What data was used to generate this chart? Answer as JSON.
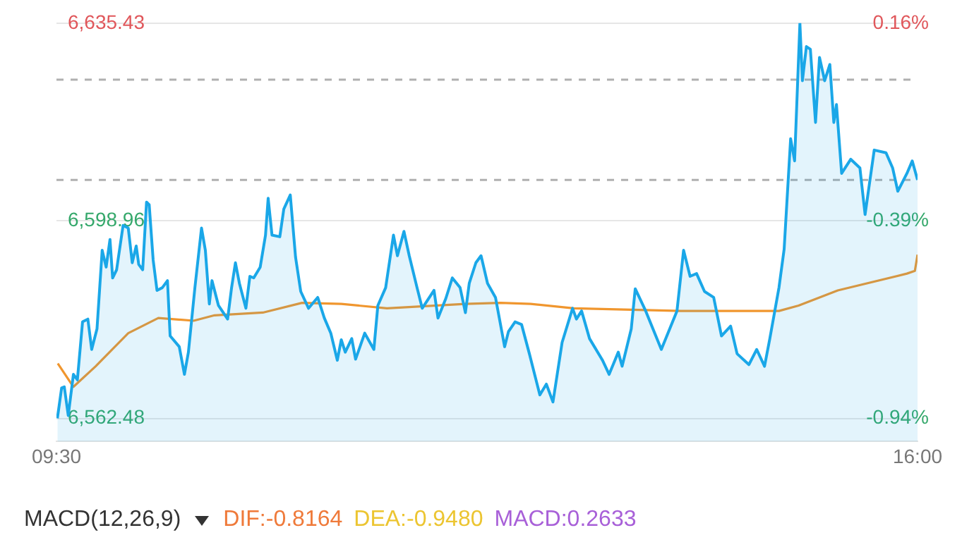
{
  "chart_data": {
    "type": "area",
    "x": [
      9.507,
      9.539,
      9.559,
      9.589,
      9.628,
      9.658,
      9.697,
      9.737,
      9.766,
      9.806,
      9.845,
      9.875,
      9.904,
      9.924,
      9.954,
      10.003,
      10.042,
      10.072,
      10.102,
      10.121,
      10.151,
      10.18,
      10.2,
      10.23,
      10.259,
      10.299,
      10.338,
      10.358,
      10.427,
      10.466,
      10.496,
      10.545,
      10.595,
      10.624,
      10.654,
      10.674,
      10.723,
      10.792,
      10.822,
      10.851,
      10.881,
      10.93,
      10.96,
      10.989,
      11.038,
      11.078,
      11.098,
      11.127,
      11.186,
      11.216,
      11.265,
      11.305,
      11.344,
      11.403,
      11.472,
      11.522,
      11.571,
      11.62,
      11.65,
      11.68,
      11.729,
      11.758,
      11.827,
      11.896,
      11.926,
      11.985,
      12.044,
      12.074,
      12.123,
      12.163,
      12.222,
      12.261,
      12.35,
      12.38,
      12.439,
      12.488,
      12.547,
      12.587,
      12.616,
      12.666,
      12.705,
      12.754,
      12.814,
      12.883,
      12.912,
      12.962,
      13.011,
      13.07,
      13.149,
      13.198,
      13.248,
      13.317,
      13.396,
      13.425,
      13.464,
      13.524,
      13.622,
      13.672,
      13.741,
      13.77,
      13.839,
      13.869,
      13.948,
      14.066,
      14.184,
      14.234,
      14.283,
      14.332,
      14.392,
      14.461,
      14.52,
      14.589,
      14.638,
      14.727,
      14.786,
      14.845,
      14.885,
      14.954,
      14.993,
      15.042,
      15.072,
      15.112,
      15.131,
      15.161,
      15.191,
      15.23,
      15.26,
      15.299,
      15.338,
      15.368,
      15.388,
      15.427,
      15.496,
      15.565,
      15.604,
      15.673,
      15.762,
      15.812,
      15.851,
      15.92,
      15.96,
      16.0
    ],
    "series": [
      {
        "color": "#1aa7e8",
        "values": [
          6562.5,
          6568.1,
          6568.3,
          6563.0,
          6570.6,
          6569.6,
          6580.3,
          6580.8,
          6575.2,
          6579.0,
          6593.5,
          6590.4,
          6595.5,
          6588.4,
          6589.9,
          6598.1,
          6597.6,
          6591.2,
          6594.3,
          6590.9,
          6589.9,
          6602.4,
          6601.9,
          6591.7,
          6586.1,
          6586.6,
          6587.9,
          6577.7,
          6575.7,
          6570.6,
          6574.7,
          6586.6,
          6597.6,
          6593.5,
          6583.6,
          6587.9,
          6583.3,
          6580.8,
          6586.6,
          6591.2,
          6587.4,
          6582.8,
          6588.7,
          6588.4,
          6590.4,
          6596.3,
          6603.1,
          6596.3,
          6596.0,
          6601.1,
          6603.7,
          6592.2,
          6585.9,
          6582.8,
          6584.8,
          6581.0,
          6578.2,
          6573.2,
          6577.0,
          6574.7,
          6577.2,
          6573.4,
          6578.2,
          6575.2,
          6583.3,
          6586.6,
          6596.3,
          6592.5,
          6597.0,
          6592.5,
          6586.6,
          6582.8,
          6586.1,
          6581.0,
          6584.6,
          6588.4,
          6586.6,
          6582.0,
          6587.4,
          6591.2,
          6592.5,
          6587.4,
          6584.8,
          6575.7,
          6578.5,
          6580.3,
          6579.8,
          6574.4,
          6566.8,
          6568.8,
          6565.5,
          6576.5,
          6582.8,
          6580.8,
          6582.3,
          6577.2,
          6573.2,
          6570.6,
          6574.7,
          6572.1,
          6579.0,
          6586.4,
          6582.3,
          6575.2,
          6582.3,
          6593.5,
          6588.7,
          6589.2,
          6585.9,
          6584.8,
          6577.7,
          6579.5,
          6574.4,
          6572.4,
          6575.2,
          6572.1,
          6577.2,
          6586.6,
          6593.7,
          6614.1,
          6610.0,
          6635.4,
          6624.8,
          6631.1,
          6630.6,
          6617.1,
          6629.1,
          6624.8,
          6627.8,
          6617.1,
          6620.4,
          6607.7,
          6610.3,
          6608.7,
          6600.1,
          6612.0,
          6611.5,
          6608.7,
          6604.4,
          6607.7,
          6610.0,
          6606.5
        ]
      },
      {
        "type": "line",
        "color": "#f0962e",
        "x": [
          9.51,
          9.628,
          9.796,
          10.042,
          10.269,
          10.536,
          10.693,
          11.058,
          11.354,
          11.65,
          11.995,
          12.587,
          12.853,
          13.08,
          13.405,
          14.214,
          14.954,
          15.102,
          15.398,
          15.92,
          15.98,
          16.0
        ],
        "values": [
          6572.6,
          6568.3,
          6572.1,
          6578.2,
          6581.0,
          6580.5,
          6581.5,
          6582.0,
          6583.8,
          6583.6,
          6582.8,
          6583.6,
          6583.8,
          6583.6,
          6582.8,
          6582.3,
          6582.3,
          6583.3,
          6586.1,
          6589.2,
          6589.7,
          6592.7
        ]
      }
    ],
    "xlim": [
      9.5,
      16
    ],
    "xticks": [
      {
        "value": 9.5,
        "label": "09:30"
      },
      {
        "value": 16,
        "label": "16:00"
      }
    ],
    "ylim": [
      6558.2,
      6635.43
    ],
    "yticks": [
      {
        "value": 6562.48,
        "label": "6,562.48"
      },
      {
        "value": 6598.96,
        "label": "6,598.96"
      },
      {
        "value": 6635.43,
        "label": "6,635.43"
      }
    ],
    "y2lim": [
      -1.005,
      0.16
    ],
    "y2ticks": [
      {
        "value": -0.94,
        "label": "-0.94%"
      },
      {
        "value": -0.39,
        "label": "-0.39%"
      },
      {
        "value": 0.16,
        "label": "0.16%"
      }
    ],
    "ref_lines": [
      {
        "axis": "y",
        "value": 6625.0,
        "color": "#b0b0b0",
        "line_style": "dashed"
      },
      {
        "axis": "y",
        "value": 6606.5,
        "color": "#b0b0b0",
        "line_style": "dashed"
      }
    ],
    "grid": "y",
    "legend": false,
    "annotations": [
      "MACD(12,26,9)",
      "DIF:-0.8164",
      "DEA:-0.9480",
      "MACD:0.2633"
    ]
  }
}
